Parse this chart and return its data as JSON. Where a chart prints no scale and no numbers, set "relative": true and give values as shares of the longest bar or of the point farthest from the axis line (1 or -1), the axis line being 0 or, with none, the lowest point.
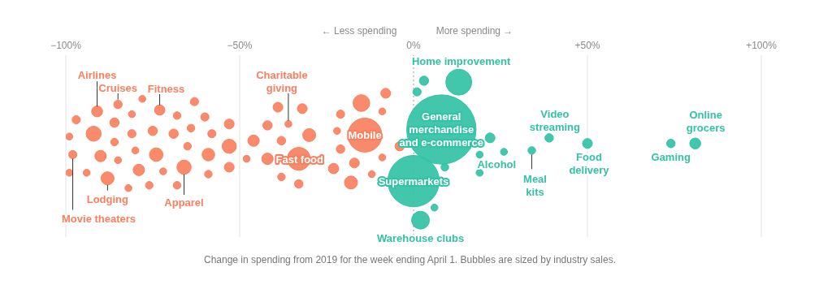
{
  "chart_data": {
    "type": "bubble",
    "relative": true,
    "xlim": [
      -100,
      100
    ],
    "xticks": [
      {
        "value": -100,
        "label": "−100%"
      },
      {
        "value": -50,
        "label": "−50%"
      },
      {
        "value": 0,
        "label": "0%"
      },
      {
        "value": 50,
        "label": "+50%"
      },
      {
        "value": 100,
        "label": "+100%"
      }
    ],
    "grid": "x",
    "ref_lines": [
      {
        "axis": "x",
        "value": 0,
        "label": null,
        "color": "#999999",
        "line_style": "dotted"
      }
    ],
    "series": [
      {
        "color": "#f9805f",
        "x": [
          -91,
          -85,
          -78,
          -73,
          -63,
          -97,
          -86,
          -81,
          -68,
          -60,
          -99,
          -92,
          -86,
          -81,
          -75,
          -69,
          -64,
          -58,
          -98,
          -90,
          -85,
          -80,
          -74,
          -65,
          -59,
          -99,
          -94,
          -88,
          -79,
          -72,
          -66,
          -59,
          -82,
          -76,
          -68,
          -53,
          -53,
          -53,
          -39,
          -32,
          -42,
          -36,
          -30,
          -46,
          -38,
          -48,
          -42,
          -33,
          -38,
          -33,
          -21,
          -15,
          -8,
          -9,
          -22,
          -14,
          -21,
          -17,
          -9,
          -23,
          -12,
          -18,
          -4
        ],
        "values": [
          0.78,
          0.83,
          0.87,
          0.79,
          0.85,
          0.72,
          0.7,
          0.76,
          0.75,
          0.74,
          0.6,
          0.62,
          0.56,
          0.62,
          0.64,
          0.62,
          0.66,
          0.62,
          0.47,
          0.46,
          0.43,
          0.5,
          0.47,
          0.53,
          0.47,
          0.34,
          0.34,
          0.3,
          0.36,
          0.35,
          0.38,
          0.33,
          0.23,
          0.25,
          0.25,
          0.69,
          0.53,
          0.38,
          0.81,
          0.8,
          0.68,
          0.69,
          0.61,
          0.57,
          0.57,
          0.44,
          0.44,
          0.44,
          0.31,
          0.26,
          0.76,
          0.84,
          0.91,
          0.78,
          0.64,
          0.61,
          0.51,
          0.41,
          0.45,
          0.37,
          0.33,
          0.27,
          0.53
        ],
        "sizes": [
          0.025,
          0.015,
          0.01,
          0.022,
          0.014,
          0.014,
          0.018,
          0.01,
          0.012,
          0.014,
          0.01,
          0.047,
          0.012,
          0.014,
          0.018,
          0.018,
          0.012,
          0.014,
          0.014,
          0.027,
          0.01,
          0.01,
          0.038,
          0.012,
          0.033,
          0.01,
          0.01,
          0.035,
          0.027,
          0.01,
          0.042,
          0.012,
          0.01,
          0.012,
          0.012,
          0.02,
          0.042,
          0.02,
          0.02,
          0.02,
          0.018,
          0.01,
          0.035,
          0.027,
          0.015,
          0.01,
          0.027,
          0.11,
          0.012,
          0.015,
          0.014,
          0.058,
          0.02,
          0.01,
          0.01,
          0.24,
          0.015,
          0.02,
          0.01,
          0.022,
          0.01,
          0.035,
          0.018
        ]
      },
      {
        "color": "#33c2a5",
        "x": [
          3,
          13,
          1,
          8,
          22,
          19,
          26,
          19,
          9,
          0,
          6,
          2,
          34,
          39,
          50,
          74,
          81
        ],
        "values": [
          1.0,
          0.99,
          0.92,
          0.65,
          0.59,
          0.47,
          0.49,
          0.34,
          0.38,
          0.28,
          0.09,
          0,
          0.5,
          0.59,
          0.55,
          0.55,
          0.55
        ],
        "sizes": [
          0.018,
          0.14,
          0.014,
          1,
          0.02,
          0.01,
          0.01,
          0.01,
          0.012,
          0.55,
          0.01,
          0.066,
          0.012,
          0.015,
          0.02,
          0.015,
          0.025
        ]
      }
    ],
    "annotations": [
      {
        "text": "Airlines",
        "x": -91,
        "y": 0.78
      },
      {
        "text": "Cruises",
        "x": -85,
        "y": 0.83
      },
      {
        "text": "Fitness",
        "x": -73,
        "y": 0.79
      },
      {
        "text": "Movie theaters",
        "x": -98,
        "y": 0.47
      },
      {
        "text": "Lodging",
        "x": -88,
        "y": 0.3
      },
      {
        "text": "Apparel",
        "x": -66,
        "y": 0.38
      },
      {
        "text": "Charitable giving",
        "x": -36,
        "y": 0.69
      },
      {
        "text": "Fast food",
        "x": -33,
        "y": 0.44
      },
      {
        "text": "Mobile",
        "x": -14,
        "y": 0.61
      },
      {
        "text": "Home improvement",
        "x": 13,
        "y": 0.99
      },
      {
        "text": "General merchandise and e-commerce",
        "x": 8,
        "y": 0.65
      },
      {
        "text": "Supermarkets",
        "x": 0,
        "y": 0.28
      },
      {
        "text": "Alcohol",
        "x": 19,
        "y": 0.47
      },
      {
        "text": "Warehouse clubs",
        "x": 2,
        "y": 0
      },
      {
        "text": "Meal kits",
        "x": 34,
        "y": 0.5
      },
      {
        "text": "Video streaming",
        "x": 39,
        "y": 0.59
      },
      {
        "text": "Food delivery",
        "x": 50,
        "y": 0.55
      },
      {
        "text": "Gaming",
        "x": 74,
        "y": 0.55
      },
      {
        "text": "Online grocers",
        "x": 81,
        "y": 0.55
      },
      "← Less spending",
      "More spending →",
      "Change in spending from 2019 for the week ending April 1. Bubbles are sized by industry sales."
    ]
  }
}
